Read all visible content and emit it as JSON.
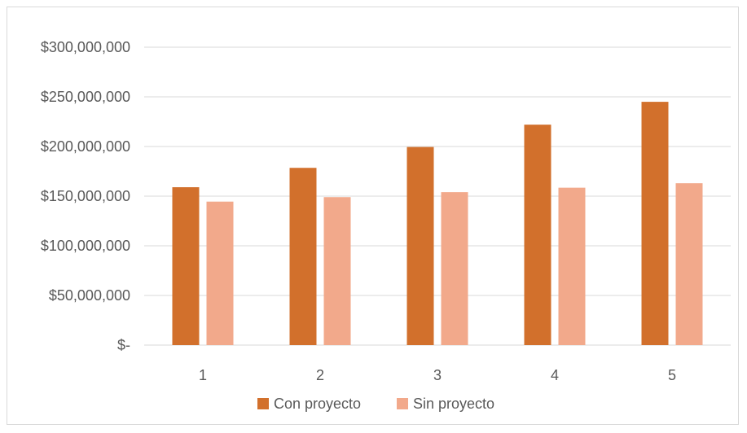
{
  "chart_data": {
    "type": "bar",
    "categories": [
      "1",
      "2",
      "3",
      "4",
      "5"
    ],
    "series": [
      {
        "name": "Con proyecto",
        "color": "#D2702C",
        "values": [
          159000000,
          178500000,
          199500000,
          222000000,
          245000000
        ]
      },
      {
        "name": "Sin proyecto",
        "color": "#F2A98B",
        "values": [
          144500000,
          149000000,
          154000000,
          158500000,
          163000000
        ]
      }
    ],
    "ylim": [
      0,
      300000000
    ],
    "yticks": [
      0,
      50000000,
      100000000,
      150000000,
      200000000,
      250000000,
      300000000
    ],
    "ytick_labels": [
      "$-",
      "$50,000,000",
      "$100,000,000",
      "$150,000,000",
      "$200,000,000",
      "$250,000,000",
      "$300,000,000"
    ],
    "grid": true,
    "legend_position": "bottom",
    "title": "",
    "xlabel": "",
    "ylabel": ""
  }
}
